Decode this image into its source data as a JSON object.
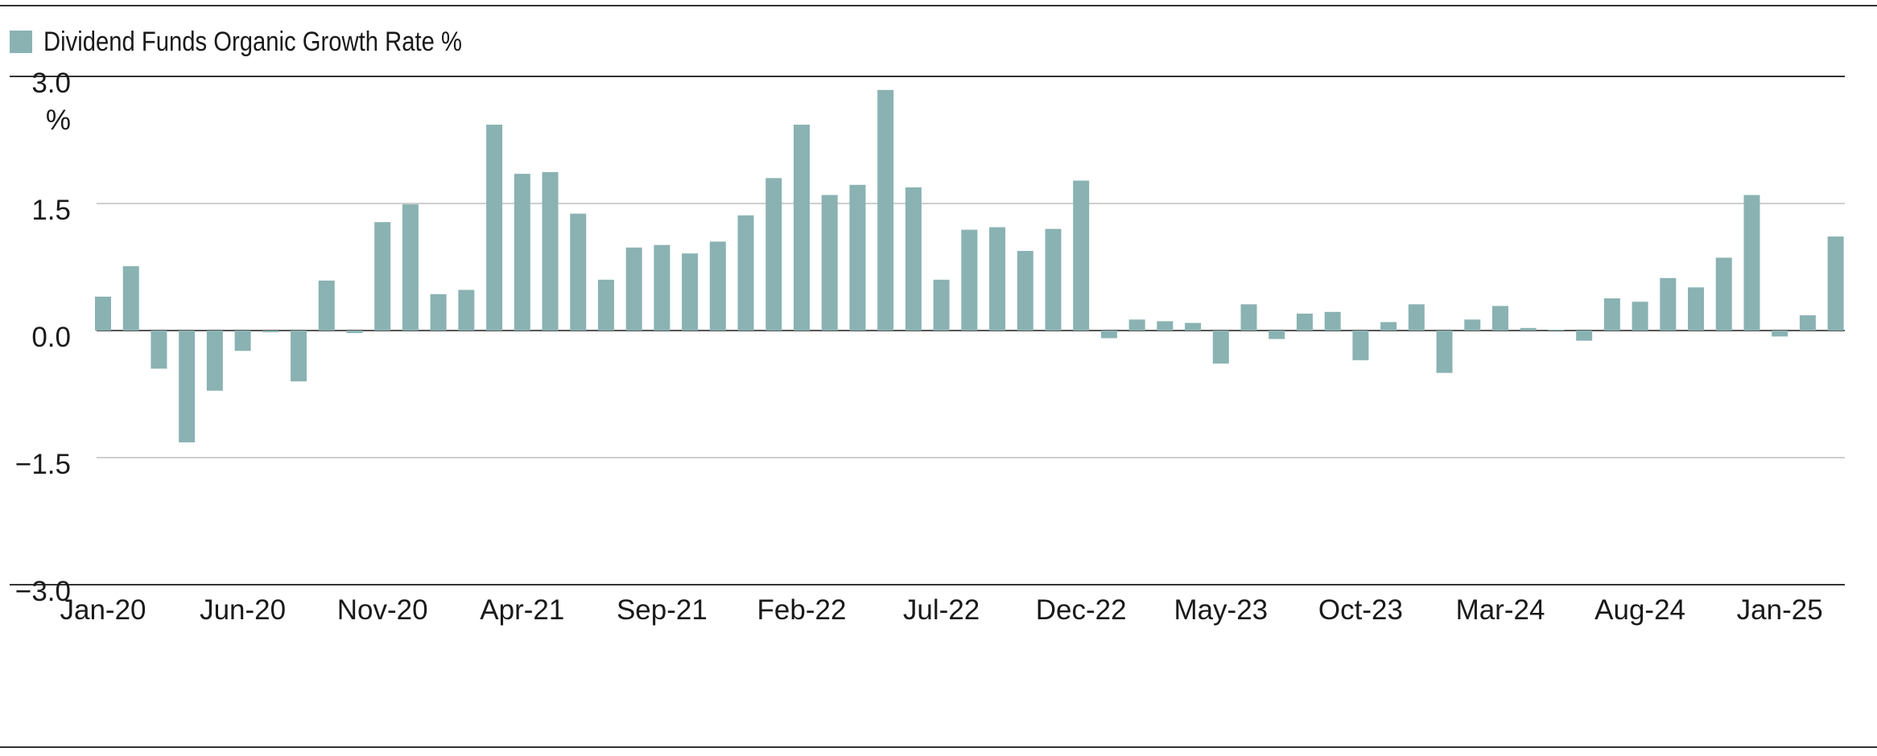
{
  "legend": {
    "label": "Dividend Funds Organic Growth Rate %"
  },
  "colors": {
    "bar": "#8ab2b2",
    "grid": "#bdbdbd",
    "zero_line": "#555555",
    "axis": "#333333"
  },
  "chart_data": {
    "type": "bar",
    "title": "",
    "xlabel": "",
    "ylabel": "",
    "y_unit_label": "%",
    "ylim": [
      -3.0,
      3.0
    ],
    "y_ticks": [
      "3.0",
      "1.5",
      "0.0",
      "−1.5",
      "−3.0"
    ],
    "y_tick_values": [
      3.0,
      1.5,
      0.0,
      -1.5,
      -3.0
    ],
    "grid": true,
    "legend_position": "top-left",
    "x_tick_labels": [
      "Jan-20",
      "Jun-20",
      "Nov-20",
      "Apr-21",
      "Sep-21",
      "Feb-22",
      "Jul-22",
      "Dec-22",
      "May-23",
      "Oct-23",
      "Mar-24",
      "Aug-24",
      "Jan-25"
    ],
    "x_tick_every": 5,
    "series": [
      {
        "name": "Dividend Funds Organic Growth Rate %",
        "categories": [
          "Jan-20",
          "Feb-20",
          "Mar-20",
          "Apr-20",
          "May-20",
          "Jun-20",
          "Jul-20",
          "Aug-20",
          "Sep-20",
          "Oct-20",
          "Nov-20",
          "Dec-20",
          "Jan-21",
          "Feb-21",
          "Mar-21",
          "Apr-21",
          "May-21",
          "Jun-21",
          "Jul-21",
          "Aug-21",
          "Sep-21",
          "Oct-21",
          "Nov-21",
          "Dec-21",
          "Jan-22",
          "Feb-22",
          "Mar-22",
          "Apr-22",
          "May-22",
          "Jun-22",
          "Jul-22",
          "Aug-22",
          "Sep-22",
          "Oct-22",
          "Nov-22",
          "Dec-22",
          "Jan-23",
          "Feb-23",
          "Mar-23",
          "Apr-23",
          "May-23",
          "Jun-23",
          "Jul-23",
          "Aug-23",
          "Sep-23",
          "Oct-23",
          "Nov-23",
          "Dec-23",
          "Jan-24",
          "Feb-24",
          "Mar-24",
          "Apr-24",
          "May-24",
          "Jun-24",
          "Jul-24",
          "Aug-24",
          "Sep-24",
          "Oct-24",
          "Nov-24",
          "Dec-24",
          "Jan-25",
          "Feb-25",
          "Mar-25"
        ],
        "values": [
          0.4,
          0.76,
          -0.45,
          -1.32,
          -0.71,
          -0.24,
          -0.02,
          -0.6,
          0.59,
          -0.03,
          1.28,
          1.49,
          0.43,
          0.48,
          2.43,
          1.85,
          1.87,
          1.38,
          0.6,
          0.98,
          1.01,
          0.91,
          1.05,
          1.36,
          1.8,
          2.43,
          1.6,
          1.72,
          2.84,
          1.69,
          0.6,
          1.19,
          1.22,
          0.94,
          1.2,
          1.77,
          -0.09,
          0.13,
          0.11,
          0.09,
          -0.39,
          0.31,
          -0.1,
          0.2,
          0.22,
          -0.35,
          0.1,
          0.31,
          -0.5,
          0.13,
          0.29,
          0.03,
          0.01,
          -0.12,
          0.38,
          0.34,
          0.62,
          0.51,
          0.86,
          1.6,
          -0.07,
          0.18,
          1.11
        ]
      }
    ]
  }
}
